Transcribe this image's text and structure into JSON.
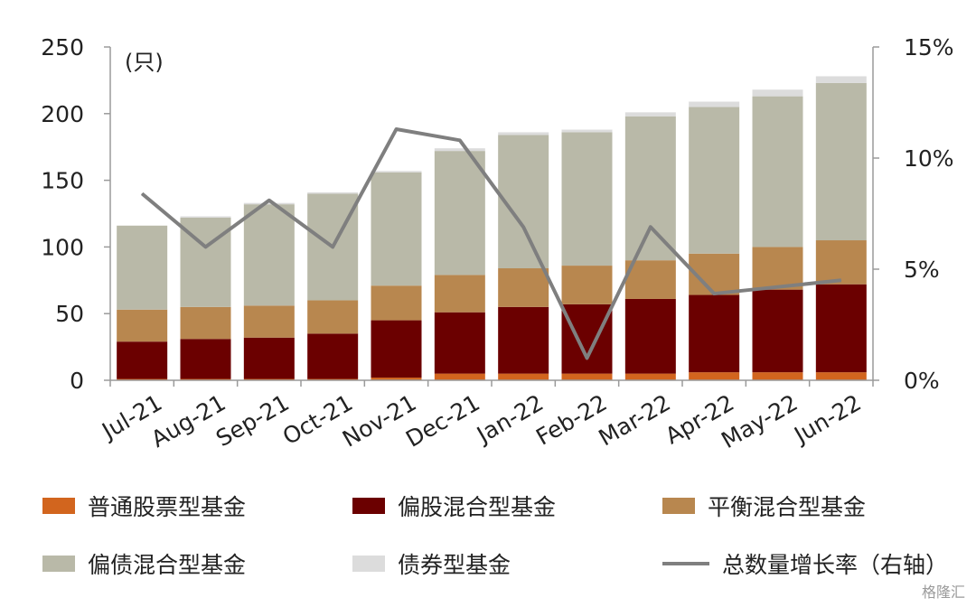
{
  "chart_data": {
    "type": "bar",
    "stacked": true,
    "categories": [
      "Jul-21",
      "Aug-21",
      "Sep-21",
      "Oct-21",
      "Nov-21",
      "Dec-21",
      "Jan-22",
      "Feb-22",
      "Mar-22",
      "Apr-22",
      "May-22",
      "Jun-22"
    ],
    "unit_label": "(只)",
    "ylim": [
      0,
      250
    ],
    "y_ticks": [
      "0",
      "50",
      "100",
      "150",
      "200",
      "250"
    ],
    "y2lim": [
      0,
      15
    ],
    "y2_ticks": [
      "0%",
      "5%",
      "10%",
      "15%"
    ],
    "series": [
      {
        "name": "普通股票型基金",
        "color": "#d2651e",
        "values": [
          1,
          1,
          1,
          1,
          2,
          5,
          5,
          5,
          5,
          6,
          6,
          6
        ]
      },
      {
        "name": "偏股混合型基金",
        "color": "#6b0000",
        "values": [
          28,
          30,
          31,
          34,
          43,
          46,
          50,
          52,
          56,
          58,
          62,
          66
        ]
      },
      {
        "name": "平衡混合型基金",
        "color": "#b8874f",
        "values": [
          24,
          24,
          24,
          25,
          26,
          28,
          29,
          29,
          29,
          31,
          32,
          33
        ]
      },
      {
        "name": "偏债混合型基金",
        "color": "#b9b9a8",
        "values": [
          63,
          67,
          76,
          80,
          85,
          93,
          100,
          100,
          108,
          110,
          113,
          118
        ]
      },
      {
        "name": "债券型基金",
        "color": "#dcdcdc",
        "values": [
          0,
          1,
          1,
          1,
          1,
          2,
          2,
          2,
          3,
          4,
          5,
          5
        ]
      }
    ],
    "line": {
      "name": "总数量增长率（右轴）",
      "color": "#7f7f7f",
      "values": [
        8.4,
        6.0,
        8.1,
        6.0,
        11.3,
        10.8,
        6.9,
        1.0,
        6.9,
        3.9,
        4.2,
        4.5
      ]
    },
    "legend_position": "bottom",
    "grid": false
  },
  "watermark": "格隆汇"
}
